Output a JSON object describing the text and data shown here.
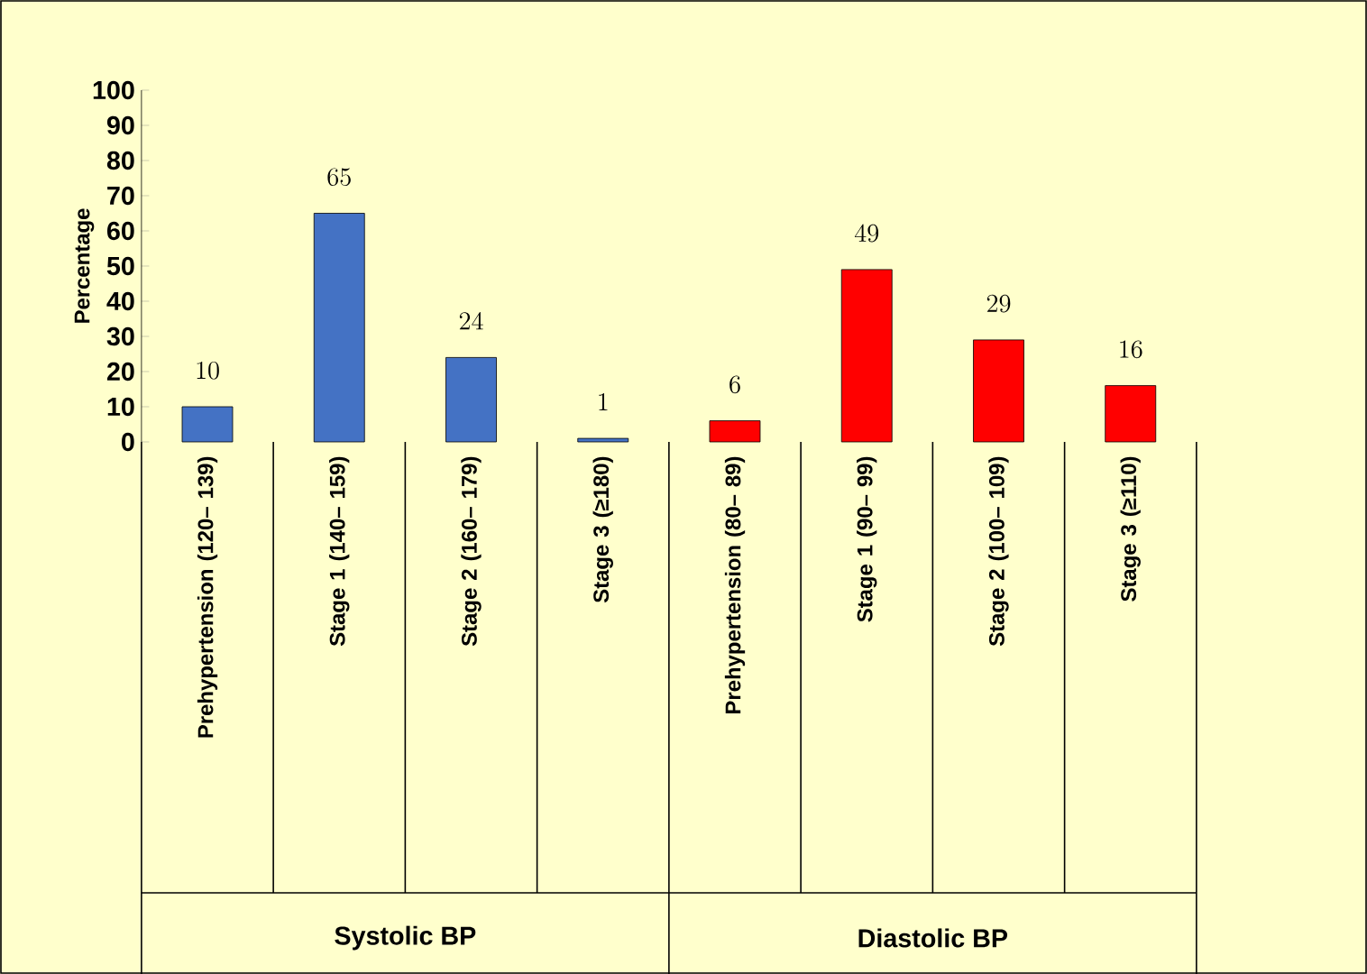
{
  "chart_data": {
    "type": "bar",
    "ylabel": "Percentage",
    "categories": [
      "Prehypertension (120– 139)",
      "Stage 1 (140– 159)",
      "Stage 2 (160– 179)",
      "Stage 3 (≥180)",
      "Prehypertension (80– 89)",
      "Stage 1 (90– 99)",
      "Stage 2 (100– 109)",
      "Stage 3 (≥110)"
    ],
    "values": [
      10,
      65,
      24,
      1,
      6,
      49,
      29,
      16
    ],
    "colors": [
      "#4472c4",
      "#4472c4",
      "#4472c4",
      "#4472c4",
      "#ff0000",
      "#ff0000",
      "#ff0000",
      "#ff0000"
    ],
    "ylim": [
      0,
      100
    ],
    "yticks": [
      0,
      10,
      20,
      30,
      40,
      50,
      60,
      70,
      80,
      90,
      100
    ],
    "data_labels": true,
    "annotations": [
      "Systolic BP",
      "Diastolic BP"
    ]
  }
}
